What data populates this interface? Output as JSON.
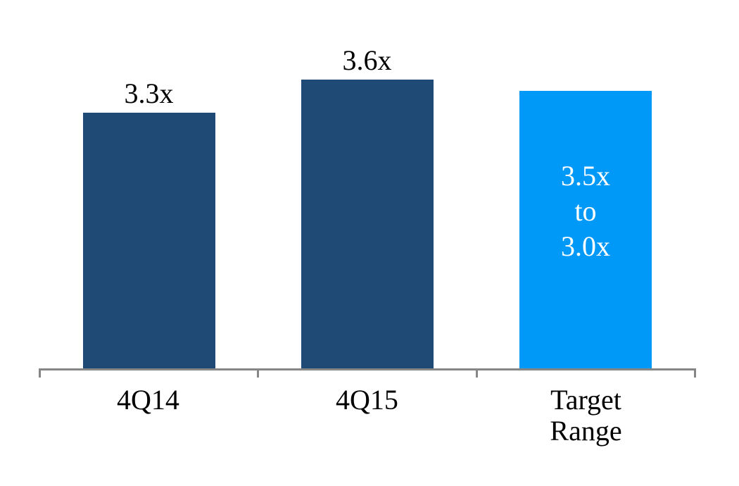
{
  "chart_data": {
    "type": "bar",
    "title": "",
    "categories": [
      "4Q14",
      "4Q15",
      "Target Range"
    ],
    "values": [
      3.3,
      3.6,
      3.5
    ],
    "bars": [
      {
        "category": "4Q14",
        "tick_label": "4Q14",
        "value": 3.3,
        "label": "3.3x",
        "label_position": "above",
        "label_color": "#000000",
        "color": "#204A76"
      },
      {
        "category": "4Q15",
        "tick_label": "4Q15",
        "value": 3.6,
        "label": "3.6x",
        "label_position": "above",
        "label_color": "#000000",
        "color": "#204A76"
      },
      {
        "category": "Target Range",
        "tick_label": "Target\nRange",
        "value": 3.5,
        "range_high": "3.5x",
        "range_low": "3.0x",
        "label": "3.5x\nto\n3.0x",
        "label_position": "inside",
        "label_color": "#FFFFFF",
        "color": "#0099F8"
      }
    ],
    "value_axis": {
      "visible": false,
      "min": 1.0,
      "unit_suffix": "x"
    },
    "category_axis": {
      "line_color": "#868686",
      "tick_marks": "outside",
      "label_color": "#000000"
    },
    "legend": "none",
    "grid": false,
    "background": "#FFFFFF"
  }
}
